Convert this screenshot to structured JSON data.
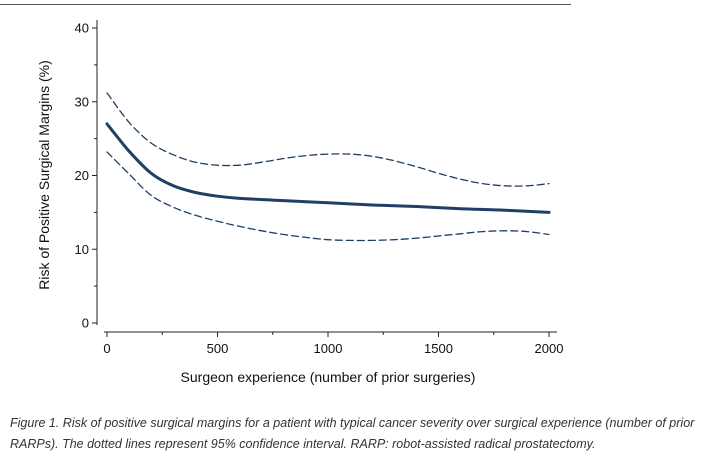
{
  "chart_data": {
    "type": "line",
    "title": "",
    "xlabel": "Surgeon experience (number of prior surgeries)",
    "ylabel": "Risk of Positive Surgical Margins (%)",
    "xlim": [
      0,
      2000
    ],
    "ylim": [
      0,
      40
    ],
    "xticks": [
      0,
      500,
      1000,
      1500,
      2000
    ],
    "xtick_labels": [
      "0",
      "500",
      "1000",
      "1500",
      "2000"
    ],
    "yticks": [
      0,
      10,
      20,
      30,
      40
    ],
    "ytick_labels": [
      "0",
      "10",
      "20",
      "30",
      "40"
    ],
    "grid": false,
    "legend": "none",
    "series": [
      {
        "name": "Risk estimate",
        "style": "solid",
        "color": "#1f3f66",
        "x": [
          0,
          100,
          200,
          300,
          400,
          500,
          600,
          800,
          1000,
          1200,
          1400,
          1600,
          1800,
          2000
        ],
        "y": [
          27,
          23.3,
          20.3,
          18.6,
          17.7,
          17.2,
          16.9,
          16.6,
          16.3,
          16.0,
          15.8,
          15.5,
          15.3,
          15.0
        ]
      },
      {
        "name": "Upper 95% CI",
        "style": "dashed",
        "color": "#1f3f66",
        "x": [
          0,
          100,
          200,
          300,
          400,
          500,
          600,
          700,
          800,
          900,
          1000,
          1100,
          1200,
          1300,
          1400,
          1500,
          1600,
          1700,
          1800,
          1900,
          2000
        ],
        "y": [
          31.2,
          27.2,
          24.4,
          22.8,
          21.8,
          21.4,
          21.4,
          21.8,
          22.3,
          22.7,
          22.9,
          22.9,
          22.6,
          22.0,
          21.2,
          20.3,
          19.5,
          18.9,
          18.6,
          18.6,
          18.9
        ]
      },
      {
        "name": "Lower 95% CI",
        "style": "dashed",
        "color": "#1f3f66",
        "x": [
          0,
          100,
          200,
          300,
          400,
          500,
          600,
          700,
          800,
          900,
          1000,
          1100,
          1200,
          1300,
          1400,
          1500,
          1600,
          1700,
          1800,
          1900,
          2000
        ],
        "y": [
          23.2,
          20.2,
          17.3,
          15.7,
          14.6,
          13.8,
          13.1,
          12.5,
          12.0,
          11.6,
          11.3,
          11.2,
          11.2,
          11.3,
          11.5,
          11.8,
          12.1,
          12.4,
          12.5,
          12.4,
          12.0
        ]
      }
    ]
  },
  "caption": {
    "line1": "Figure 1. Risk of positive surgical margins for a patient with typical cancer severity over surgical experience (number of prior",
    "line2": "RARPs). The dotted lines represent 95% confidence interval. RARP: robot-assisted radical prostatectomy."
  }
}
